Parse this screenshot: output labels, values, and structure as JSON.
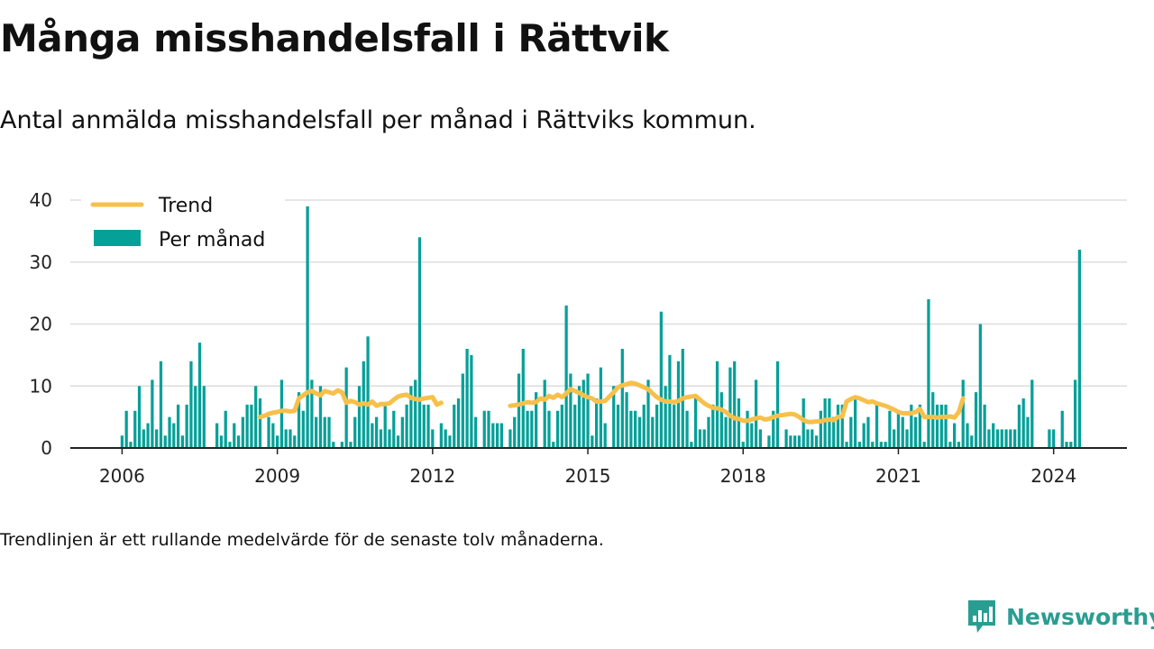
{
  "title": "Många misshandelsfall i Rättvik",
  "subtitle": "Antal anmälda misshandelsfall per månad i Rättviks kommun.",
  "footnote": "Trendlinjen är ett rullande medelvärde för de senaste tolv månaderna.",
  "brand": {
    "name": "Newsworthy",
    "icon": "newsworthy-logo-icon",
    "color": "#2a9d92"
  },
  "chart_data": {
    "type": "bar",
    "x_unit": "month",
    "start_month": "2006-01",
    "xlim": [
      "2005-01",
      "2025-06"
    ],
    "ylim": [
      0,
      40
    ],
    "y_ticks": [
      0,
      10,
      20,
      30,
      40
    ],
    "x_ticks": [
      "2006",
      "2009",
      "2012",
      "2015",
      "2018",
      "2021",
      "2024"
    ],
    "grid": true,
    "legend_position": "top-left",
    "legend": [
      {
        "name": "Trend",
        "kind": "line",
        "color": "#f7c04a"
      },
      {
        "name": "Per månad",
        "kind": "bar",
        "color": "#05a098"
      }
    ],
    "series": [
      {
        "name": "Per månad",
        "kind": "bar",
        "color": "#05a098",
        "values": [
          2,
          6,
          1,
          6,
          10,
          3,
          4,
          11,
          3,
          14,
          2,
          5,
          4,
          7,
          2,
          7,
          14,
          10,
          17,
          10,
          0,
          0,
          4,
          2,
          6,
          1,
          4,
          2,
          5,
          7,
          7,
          10,
          8,
          0,
          5,
          4,
          2,
          11,
          3,
          3,
          2,
          9,
          6,
          39,
          11,
          5,
          10,
          5,
          5,
          1,
          0,
          1,
          13,
          1,
          5,
          10,
          14,
          18,
          4,
          5,
          3,
          7,
          3,
          6,
          2,
          5,
          7,
          10,
          11,
          34,
          7,
          7,
          3,
          0,
          4,
          3,
          2,
          7,
          8,
          12,
          16,
          15,
          5,
          0,
          6,
          6,
          4,
          4,
          4,
          0,
          3,
          5,
          12,
          16,
          6,
          6,
          9,
          0,
          11,
          6,
          1,
          6,
          7,
          23,
          12,
          7,
          10,
          11,
          12,
          2,
          8,
          13,
          4,
          0,
          10,
          7,
          16,
          9,
          6,
          6,
          5,
          7,
          11,
          5,
          7,
          22,
          10,
          15,
          7,
          14,
          16,
          6,
          1,
          8,
          3,
          3,
          5,
          7,
          14,
          9,
          5,
          13,
          14,
          8,
          1,
          6,
          4,
          11,
          3,
          0,
          2,
          6,
          14,
          0,
          3,
          2,
          2,
          2,
          8,
          3,
          3,
          2,
          6,
          8,
          8,
          5,
          7,
          7,
          1,
          5,
          8,
          1,
          4,
          5,
          1,
          7,
          1,
          1,
          6,
          3,
          6,
          5,
          3,
          7,
          5,
          7,
          1,
          24,
          9,
          7,
          7,
          7,
          1,
          4,
          1,
          11,
          4,
          2,
          9,
          20,
          7,
          3,
          4,
          3,
          3,
          3,
          3,
          3,
          7,
          8,
          5,
          11,
          0,
          0,
          0,
          3,
          3,
          0,
          6,
          1,
          1,
          11,
          32
        ]
      },
      {
        "name": "Trend",
        "kind": "line",
        "color": "#f7c04a",
        "segments": [
          {
            "start_month": "2008-09",
            "values": [
              5.0,
              5.2,
              5.5,
              5.7,
              5.8,
              6.0,
              6.0,
              5.9,
              6.0,
              8.0,
              8.5,
              9.0,
              9.2,
              8.8,
              8.5,
              9.2,
              9.0,
              8.8,
              9.3,
              9.0,
              7.3,
              7.6,
              7.4,
              7.0,
              7.2,
              7.0,
              7.5,
              6.8,
              7.1,
              7.1,
              7.2,
              7.8,
              8.3,
              8.5,
              8.6,
              8.1,
              7.9,
              7.8,
              8.0,
              8.1,
              8.2,
              7.0,
              7.3
            ]
          },
          {
            "start_month": "2013-07",
            "values": [
              6.8,
              6.9,
              7.0,
              7.2,
              7.4,
              7.3,
              7.4,
              8.0,
              7.8,
              8.4,
              8.1,
              8.6,
              8.2,
              8.8,
              9.5,
              9.2,
              8.9,
              8.5,
              8.2,
              8.0,
              7.5,
              7.5,
              7.6,
              8.3,
              9.0,
              9.8,
              10.1,
              10.3,
              10.5,
              10.4,
              10.1,
              9.8,
              9.5,
              8.8,
              8.2,
              7.8,
              7.5,
              7.5,
              7.4,
              7.6,
              8.0,
              8.2,
              8.3,
              8.4,
              7.8,
              7.2,
              6.8,
              6.5,
              6.4,
              6.2,
              5.8,
              5.2,
              4.8,
              4.7,
              4.4,
              4.4,
              4.6,
              4.8,
              4.9,
              4.6,
              4.7,
              5.0,
              5.2,
              5.3,
              5.4,
              5.5,
              5.4,
              5.0,
              4.5,
              4.2,
              4.2,
              4.3,
              4.3,
              4.5,
              4.6,
              4.5,
              5.0,
              5.1,
              7.5,
              7.9,
              8.2,
              8.0,
              7.7,
              7.4,
              7.5,
              7.2,
              7.0,
              6.8,
              6.5,
              6.2,
              5.8,
              5.6,
              5.6,
              5.6,
              5.8,
              6.3,
              5.0,
              5.0,
              5.0,
              4.9,
              5.0,
              5.0,
              5.1,
              4.9,
              5.8,
              8.0
            ]
          }
        ]
      }
    ]
  }
}
